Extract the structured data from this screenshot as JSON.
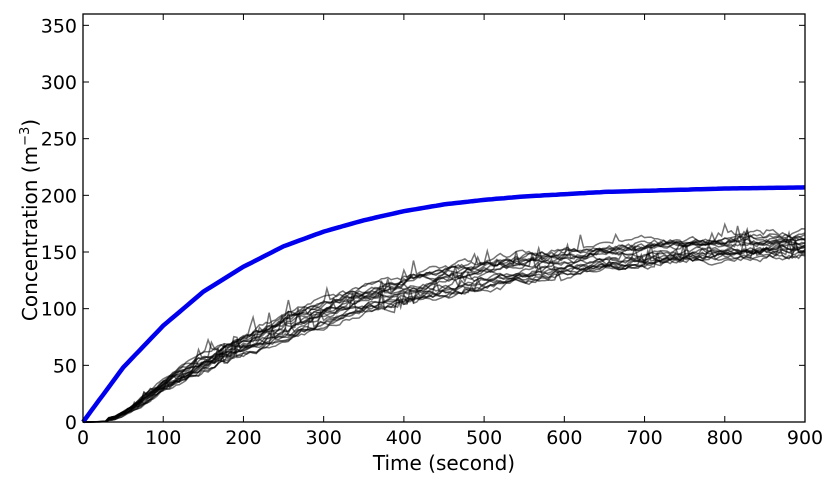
{
  "chart_data": {
    "type": "line",
    "title": "",
    "xlabel": "Time (second)",
    "ylabel": "Concentration (m",
    "ylabel_superscript": "−3",
    "ylabel_suffix": ")",
    "xlim": [
      0,
      900
    ],
    "ylim": [
      0,
      360
    ],
    "x_ticks": [
      0,
      100,
      200,
      300,
      400,
      500,
      600,
      700,
      800,
      900
    ],
    "y_ticks": [
      0,
      50,
      100,
      150,
      200,
      250,
      300,
      350
    ],
    "x_tick_labels": [
      "0",
      "100",
      "200",
      "300",
      "400",
      "500",
      "600",
      "700",
      "800",
      "900"
    ],
    "y_tick_labels": [
      "0",
      "50",
      "100",
      "150",
      "200",
      "250",
      "300",
      "350"
    ],
    "grid": false,
    "legend": "none",
    "colors": {
      "deterministic": "#0000ee",
      "stochastic": "#000000"
    },
    "series": [
      {
        "x": [
          0,
          50,
          100,
          150,
          200,
          250,
          300,
          350,
          400,
          450,
          500,
          550,
          600,
          650,
          700,
          750,
          800,
          850,
          900
        ],
        "values": [
          0,
          48,
          85,
          115,
          137,
          155,
          168,
          178,
          186,
          192,
          196,
          199,
          201,
          203,
          204,
          205,
          206,
          206.5,
          207
        ]
      }
    ],
    "stochastic_mean": {
      "x": [
        0,
        20,
        40,
        60,
        80,
        100,
        150,
        200,
        250,
        300,
        350,
        400,
        450,
        500,
        550,
        600,
        650,
        700,
        750,
        800,
        850,
        900
      ],
      "values": [
        0,
        1,
        4,
        12,
        22,
        32,
        52,
        68,
        83,
        96,
        107,
        115,
        123,
        129,
        135,
        140,
        144,
        147,
        150,
        152,
        154,
        156
      ]
    },
    "stochastic_runs": 20
  }
}
